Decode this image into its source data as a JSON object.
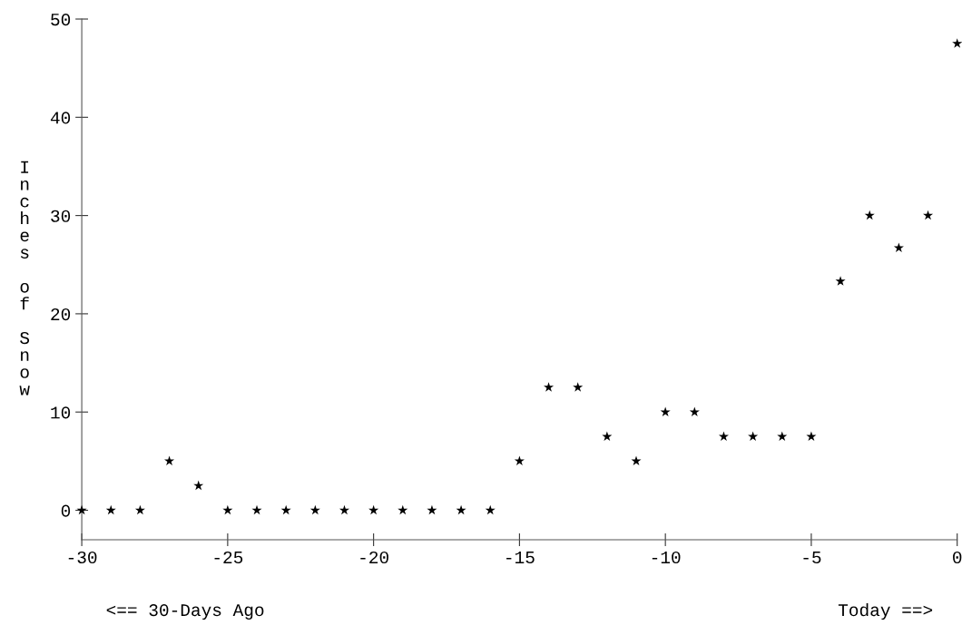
{
  "chart_data": {
    "type": "scatter",
    "ylabel": "Inches of Snow",
    "annotations": [
      "<== 30-Days Ago",
      "Today ==>"
    ],
    "x": [
      -30,
      -29,
      -28,
      -27,
      -26,
      -25,
      -24,
      -23,
      -22,
      -21,
      -20,
      -19,
      -18,
      -17,
      -16,
      -15,
      -14,
      -13,
      -12,
      -11,
      -10,
      -9,
      -8,
      -7,
      -6,
      -5,
      -4,
      -3,
      -2,
      -1,
      0
    ],
    "series": [
      {
        "color": "#000000",
        "values": [
          0,
          0,
          0,
          5,
          2.5,
          0,
          0,
          0,
          0,
          0,
          0,
          0,
          0,
          0,
          0,
          5,
          12.5,
          12.5,
          7.5,
          5,
          10,
          10,
          7.5,
          7.5,
          7.5,
          7.5,
          23.3,
          30,
          26.7,
          30,
          47.5
        ]
      }
    ],
    "xlim": [
      -30,
      0
    ],
    "xticks": [
      -30,
      -25,
      -20,
      -15,
      -10,
      -5,
      0
    ],
    "ylim": [
      -3,
      50
    ],
    "yticks": [
      0,
      10,
      20,
      30,
      40,
      50
    ],
    "marker": "star",
    "grid": false,
    "legend": false
  }
}
